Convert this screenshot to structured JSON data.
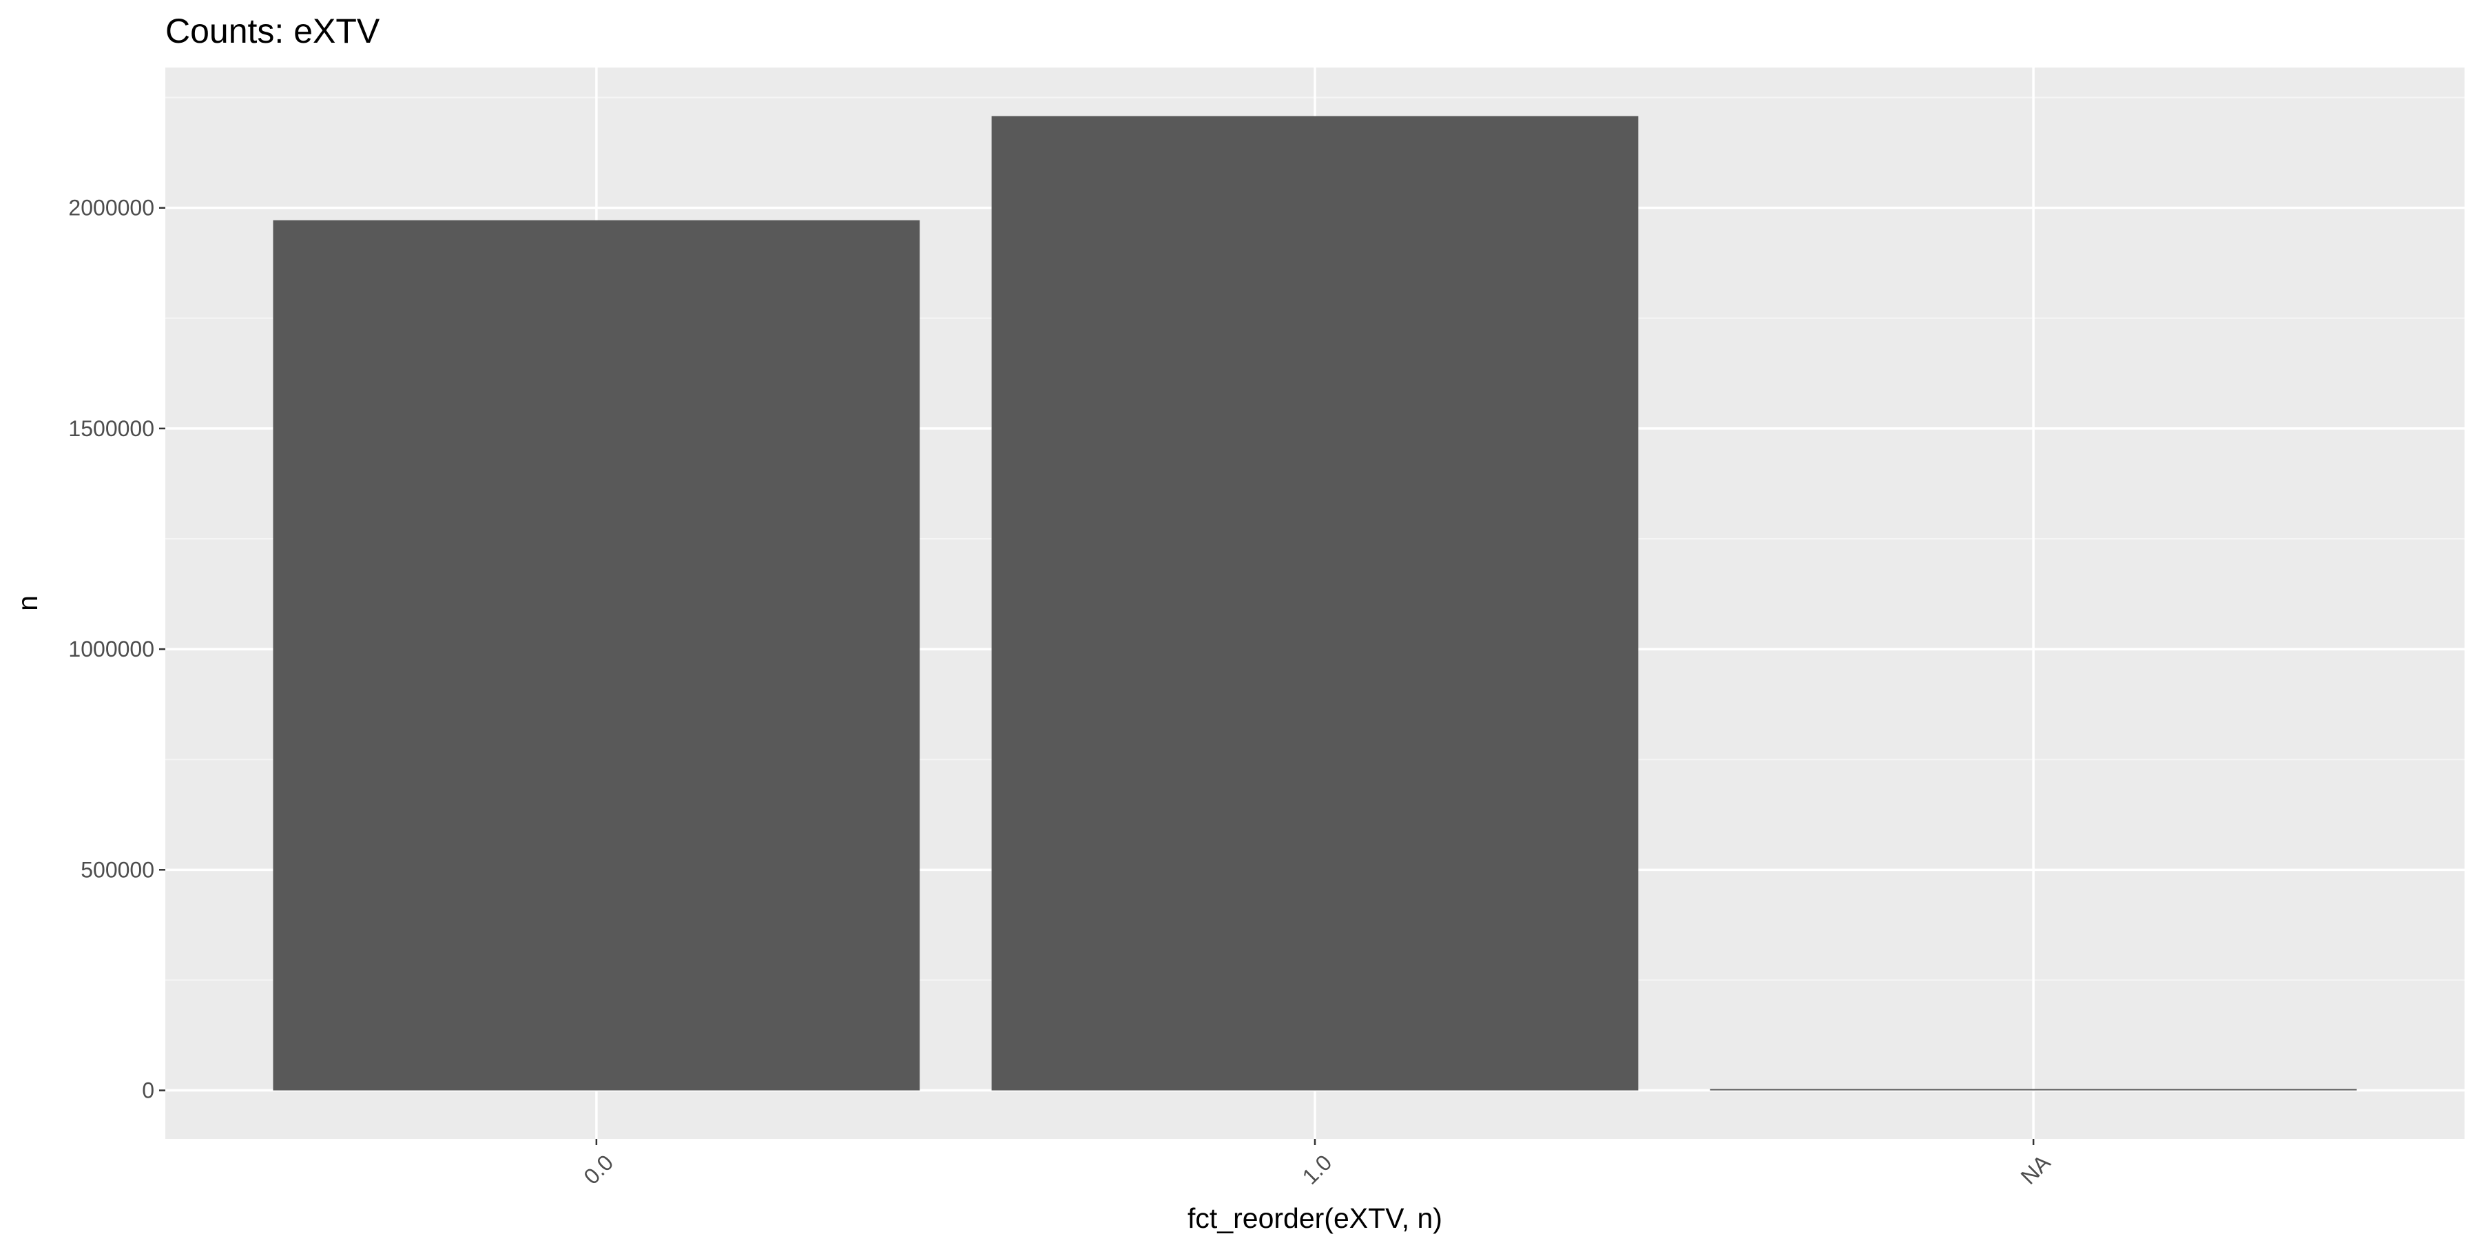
{
  "chart_data": {
    "type": "bar",
    "title": "Counts: eXTV",
    "xlabel": "fct_reorder(eXTV, n)",
    "ylabel": "n",
    "categories": [
      "0.0",
      "1.0",
      "NA"
    ],
    "values": [
      1972000,
      2208000,
      3000
    ],
    "ylim": [
      -110000,
      2318000
    ],
    "yticks": [
      0,
      500000,
      1000000,
      1500000,
      2000000
    ],
    "ytick_labels": [
      "0",
      "500000",
      "1000000",
      "1500000",
      "2000000"
    ],
    "grid": true,
    "legend": "none",
    "x_tick_rotation": "45 degrees"
  },
  "colors": {
    "panel_background": "#ebebeb",
    "grid_major": "#ffffff",
    "grid_minor": "#f5f5f5",
    "bar_fill": "#595959",
    "tick_text": "#4d4d4d",
    "tick_mark": "#333333",
    "title_text": "#000000"
  }
}
